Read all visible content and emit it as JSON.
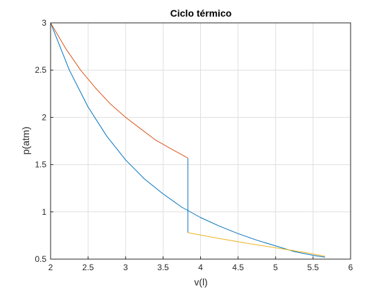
{
  "chart_data": {
    "type": "line",
    "title": "Ciclo térmico",
    "xlabel": "v(l)",
    "ylabel": "p(atm)",
    "xlim": [
      2,
      6
    ],
    "ylim": [
      0.5,
      3
    ],
    "xticks": [
      "2",
      "2.5",
      "3",
      "3.5",
      "4",
      "4.5",
      "5",
      "5.5",
      "6"
    ],
    "yticks": [
      "0.5",
      "1",
      "1.5",
      "2",
      "2.5",
      "3"
    ],
    "grid": true,
    "legend": "none",
    "series": [
      {
        "color": "#0072BD",
        "x": [
          2.0,
          2.25,
          2.5,
          2.75,
          3.0,
          3.25,
          3.5,
          3.75,
          4.0,
          4.25,
          4.5,
          4.75,
          5.0,
          5.25,
          5.5,
          5.66
        ],
        "y": [
          3.0,
          2.5,
          2.11,
          1.8,
          1.55,
          1.35,
          1.19,
          1.05,
          0.94,
          0.85,
          0.77,
          0.7,
          0.64,
          0.58,
          0.54,
          0.52
        ]
      },
      {
        "color": "#D95319",
        "x": [
          2.0,
          2.2,
          2.4,
          2.6,
          2.8,
          3.0,
          3.2,
          3.4,
          3.6,
          3.83
        ],
        "y": [
          3.0,
          2.73,
          2.5,
          2.31,
          2.14,
          2.0,
          1.88,
          1.76,
          1.67,
          1.57
        ]
      },
      {
        "color": "#0072BD",
        "x": [
          3.83,
          3.83
        ],
        "y": [
          1.57,
          0.78
        ]
      },
      {
        "color": "#EDB120",
        "x": [
          3.83,
          4.2,
          4.6,
          5.0,
          5.4,
          5.66
        ],
        "y": [
          0.78,
          0.725,
          0.67,
          0.62,
          0.57,
          0.53
        ]
      }
    ]
  }
}
